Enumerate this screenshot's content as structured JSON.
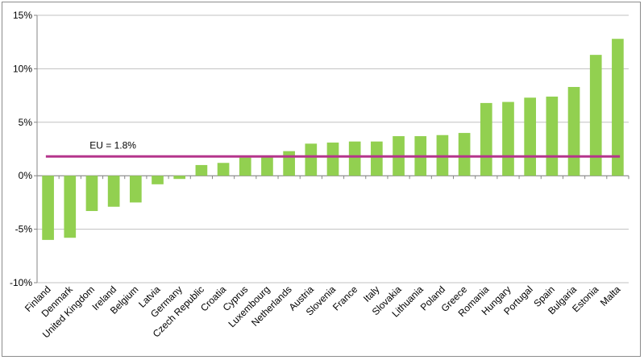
{
  "chart_data": {
    "type": "bar",
    "categories": [
      "Finland",
      "Denmark",
      "United Kingdom",
      "Ireland",
      "Belgium",
      "Latvia",
      "Germany",
      "Czech Republic",
      "Croatia",
      "Cyprus",
      "Luxembourg",
      "Netherlands",
      "Austria",
      "Slovenia",
      "France",
      "Italy",
      "Slovakia",
      "Lithuania",
      "Poland",
      "Greece",
      "Romania",
      "Hungary",
      "Portugal",
      "Spain",
      "Bulgaria",
      "Estonia",
      "Malta"
    ],
    "values": [
      -6.0,
      -5.8,
      -3.3,
      -2.9,
      -2.5,
      -0.8,
      -0.3,
      1.0,
      1.2,
      1.7,
      1.8,
      2.3,
      3.0,
      3.1,
      3.2,
      3.2,
      3.7,
      3.7,
      3.8,
      4.0,
      6.8,
      6.9,
      7.3,
      7.4,
      8.3,
      11.3,
      12.8
    ],
    "ylim": [
      -10,
      15
    ],
    "yticks": [
      "-10%",
      "-5%",
      "0%",
      "5%",
      "10%",
      "15%"
    ],
    "ytick_values": [
      -10,
      -5,
      0,
      5,
      10,
      15
    ],
    "grid": true,
    "bar_color": "#92d050",
    "reference_line": {
      "value": 1.8,
      "label": "EU = 1.8%",
      "color": "#b5358c"
    }
  }
}
